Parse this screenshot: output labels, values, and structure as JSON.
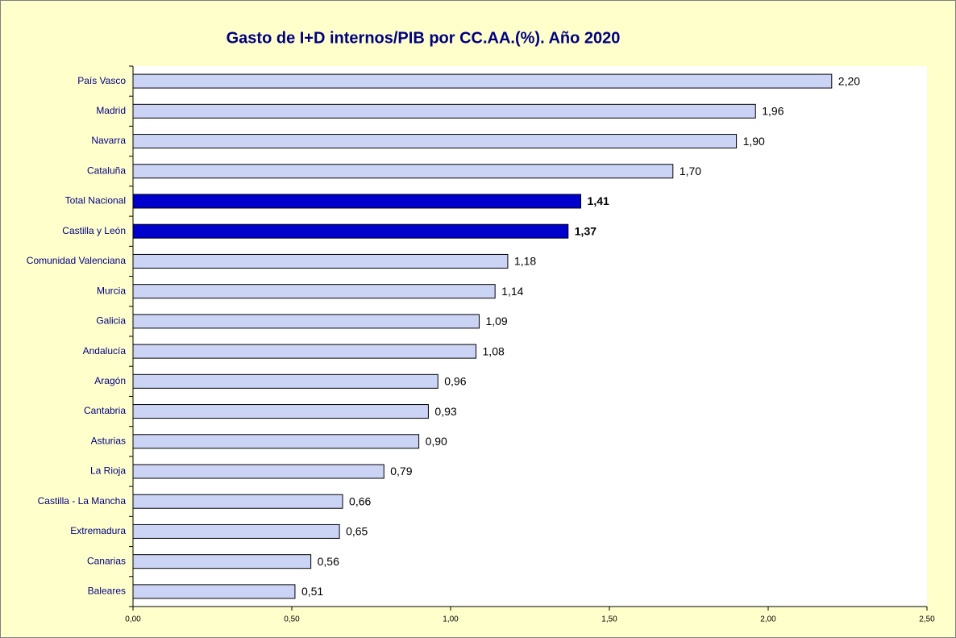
{
  "chart_data": {
    "type": "bar",
    "orientation": "horizontal",
    "title": "Gasto de I+D internos/PIB por CC.AA.(%). Año 2020",
    "categories": [
      "País Vasco",
      "Madrid",
      "Navarra",
      "Cataluña",
      "Total Nacional",
      "Castilla y León",
      "Comunidad Valenciana",
      "Murcia",
      "Galicia",
      "Andalucía",
      "Aragón",
      "Cantabria",
      "Asturias",
      "La Rioja",
      "Castilla - La Mancha",
      "Extremadura",
      "Canarias",
      "Baleares"
    ],
    "values": [
      2.2,
      1.96,
      1.9,
      1.7,
      1.41,
      1.37,
      1.18,
      1.14,
      1.09,
      1.08,
      0.96,
      0.93,
      0.9,
      0.79,
      0.66,
      0.65,
      0.56,
      0.51
    ],
    "value_labels": [
      "2,20",
      "1,96",
      "1,90",
      "1,70",
      "1,41",
      "1,37",
      "1,18",
      "1,14",
      "1,09",
      "1,08",
      "0,96",
      "0,93",
      "0,90",
      "0,79",
      "0,66",
      "0,65",
      "0,56",
      "0,51"
    ],
    "color": "#ccd4f6",
    "colors": [
      "#ccd4f6",
      "#ccd4f6",
      "#ccd4f6",
      "#ccd4f6",
      "#0000cc",
      "#0000cc",
      "#ccd4f6",
      "#ccd4f6",
      "#ccd4f6",
      "#ccd4f6",
      "#ccd4f6",
      "#ccd4f6",
      "#ccd4f6",
      "#ccd4f6",
      "#ccd4f6",
      "#ccd4f6",
      "#ccd4f6",
      "#ccd4f6"
    ],
    "xlim": [
      0,
      2.5
    ],
    "xticks": [
      {
        "value": 0,
        "label": "0,00"
      },
      {
        "value": 0.5,
        "label": "0,50"
      },
      {
        "value": 1,
        "label": "1,00"
      },
      {
        "value": 1.5,
        "label": "1,50"
      },
      {
        "value": 2,
        "label": "2,00"
      },
      {
        "value": 2.5,
        "label": "2,50"
      }
    ],
    "grid": false
  }
}
